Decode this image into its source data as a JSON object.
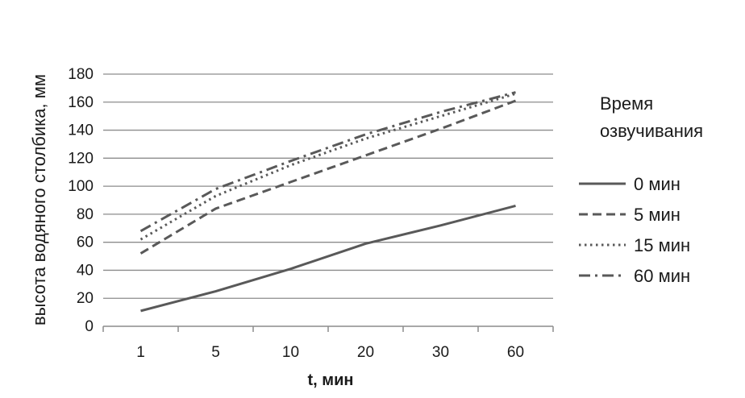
{
  "chart_data": {
    "type": "line",
    "xlabel": "t, мин",
    "ylabel": "высота водяного столбика, мм",
    "categories": [
      "1",
      "5",
      "10",
      "20",
      "30",
      "60"
    ],
    "ylim": [
      0,
      180
    ],
    "yticks": [
      0,
      20,
      40,
      60,
      80,
      100,
      120,
      140,
      160,
      180
    ],
    "grid": "horizontal",
    "legend_title": "Время озвучивания",
    "legend_position": "right",
    "series": [
      {
        "name": "0 мин",
        "style": "solid",
        "color": "#595959",
        "values": [
          11,
          25,
          41,
          59,
          72,
          86
        ]
      },
      {
        "name": "5 мин",
        "style": "dashed",
        "color": "#595959",
        "values": [
          52,
          84,
          103,
          122,
          141,
          161
        ]
      },
      {
        "name": "15 мин",
        "style": "dotted",
        "color": "#595959",
        "values": [
          62,
          93,
          115,
          134,
          150,
          166
        ]
      },
      {
        "name": "60 мин",
        "style": "dashdot",
        "color": "#595959",
        "values": [
          68,
          98,
          118,
          137,
          153,
          167
        ]
      }
    ]
  }
}
